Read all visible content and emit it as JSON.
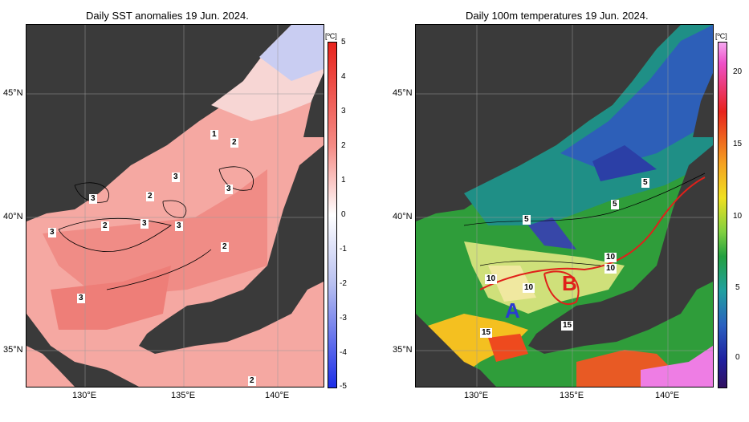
{
  "left_map": {
    "title": "Daily SST anomalies 19 Jun. 2024.",
    "unit": "[ºC]",
    "lat_labels": [
      "45°N",
      "40°N",
      "35°N"
    ],
    "lon_labels": [
      "130°E",
      "135°E",
      "140°E"
    ],
    "colorbar_ticks": [
      "5",
      "4",
      "3",
      "2",
      "1",
      "0",
      "-1",
      "-2",
      "-3",
      "-4",
      "-5"
    ],
    "contour_labels": [
      "1",
      "2",
      "3",
      "3",
      "3",
      "2",
      "3",
      "3",
      "2",
      "3",
      "3",
      "3",
      "2",
      "3",
      "2"
    ]
  },
  "right_map": {
    "title": "Daily 100m temperatures 19 Jun. 2024.",
    "unit": "[ºC]",
    "lat_labels": [
      "45°N",
      "40°N",
      "35°N"
    ],
    "lon_labels": [
      "130°E",
      "135°E",
      "140°E"
    ],
    "colorbar_ticks": [
      "20",
      "15",
      "10",
      "5",
      "0"
    ],
    "contour_labels": [
      "5",
      "5",
      "5",
      "10",
      "10",
      "10",
      "10",
      "15",
      "15"
    ],
    "markers": [
      "A",
      "B"
    ],
    "marker_colors": {
      "A": "#2a3ccf",
      "B": "#e0201a"
    }
  }
}
